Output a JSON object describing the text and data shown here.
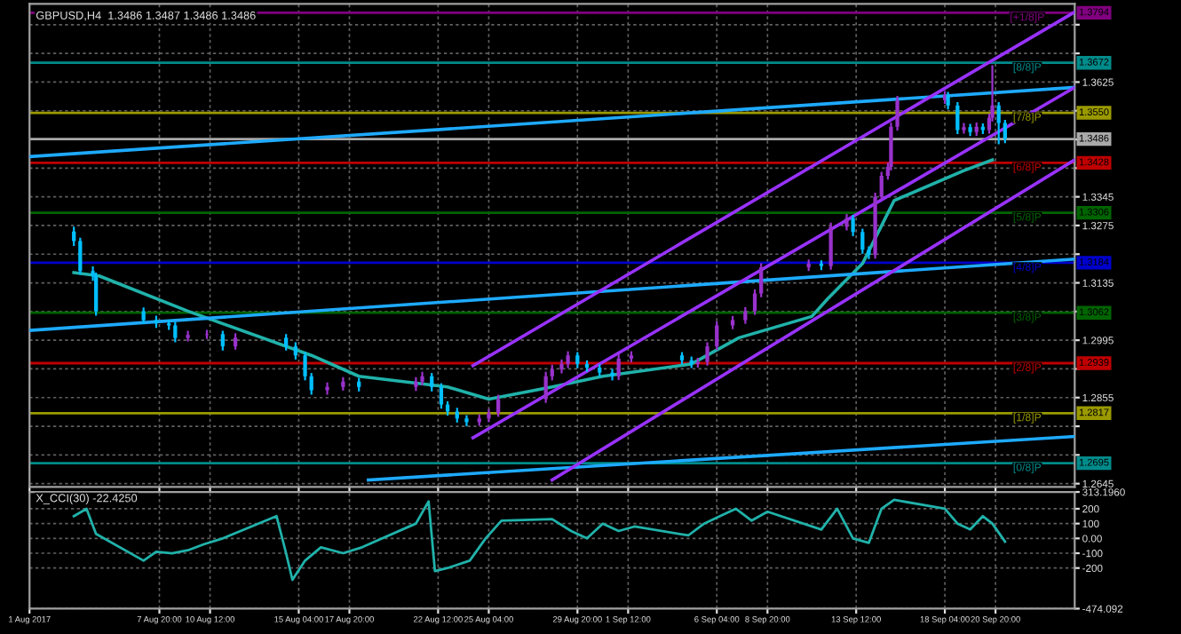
{
  "chart_data": [
    {
      "type": "candlestick",
      "title": "GBPUSD,H4  1.3486 1.3487 1.3486 1.3486",
      "x": [
        "2017-08-03T08:00",
        "2017-08-03T16:00",
        "2017-08-04T08:00",
        "2017-08-04T12:00",
        "2017-08-07T00:00",
        "2017-08-07T16:00",
        "2017-08-08T08:00",
        "2017-08-08T16:00",
        "2017-08-09T08:00",
        "2017-08-10T08:00",
        "2017-08-11T04:00",
        "2017-08-11T20:00",
        "2017-08-14T12:00",
        "2017-08-15T00:00",
        "2017-08-15T12:00",
        "2017-08-15T20:00",
        "2017-08-16T16:00",
        "2017-08-17T12:00",
        "2017-08-18T08:00",
        "2017-08-21T08:00",
        "2017-08-21T16:00",
        "2017-08-22T04:00",
        "2017-08-22T16:00",
        "2017-08-23T00:00",
        "2017-08-23T12:00",
        "2017-08-24T00:00",
        "2017-08-24T16:00",
        "2017-08-25T04:00",
        "2017-08-25T16:00",
        "2017-08-28T04:00",
        "2017-08-28T12:00",
        "2017-08-29T00:00",
        "2017-08-29T08:00",
        "2017-08-29T20:00",
        "2017-08-30T08:00",
        "2017-08-31T00:00",
        "2017-08-31T16:00",
        "2017-09-01T00:00",
        "2017-09-01T16:00",
        "2017-09-04T08:00",
        "2017-09-04T20:00",
        "2017-09-05T04:00",
        "2017-09-05T16:00",
        "2017-09-06T04:00",
        "2017-09-07T00:00",
        "2017-09-07T16:00",
        "2017-09-08T04:00",
        "2017-09-08T12:00",
        "2017-09-11T00:00",
        "2017-09-11T16:00",
        "2017-09-12T04:00",
        "2017-09-13T00:00",
        "2017-09-13T08:00",
        "2017-09-13T20:00",
        "2017-09-14T04:00",
        "2017-09-14T12:00",
        "2017-09-14T20:00",
        "2017-09-15T04:00",
        "2017-09-15T08:00",
        "2017-09-15T16:00",
        "2017-09-18T04:00",
        "2017-09-18T08:00",
        "2017-09-18T20:00",
        "2017-09-19T04:00",
        "2017-09-19T12:00",
        "2017-09-19T20:00",
        "2017-09-20T04:00",
        "2017-09-20T12:00",
        "2017-09-20T16:00",
        "2017-09-21T00:00",
        "2017-09-21T08:00"
      ],
      "ohlc": [
        [
          1.326,
          1.3272,
          1.3225,
          1.3237
        ],
        [
          1.3237,
          1.3245,
          1.3155,
          1.3164
        ],
        [
          1.3164,
          1.3175,
          1.314,
          1.3152
        ],
        [
          1.3152,
          1.316,
          1.3055,
          1.3066
        ],
        [
          1.3066,
          1.3075,
          1.3035,
          1.3044
        ],
        [
          1.3044,
          1.3055,
          1.3025,
          1.3036
        ],
        [
          1.3036,
          1.3045,
          1.302,
          1.3031
        ],
        [
          1.3031,
          1.304,
          1.299,
          1.3001
        ],
        [
          1.3001,
          1.3018,
          1.2992,
          1.3008
        ],
        [
          1.3008,
          1.302,
          1.2998,
          1.301
        ],
        [
          1.301,
          1.3018,
          1.297,
          1.298
        ],
        [
          1.298,
          1.3012,
          1.2972,
          1.3001
        ],
        [
          1.3001,
          1.301,
          1.297,
          1.298
        ],
        [
          1.298,
          1.299,
          1.2948,
          1.2958
        ],
        [
          1.2958,
          1.2966,
          1.2897,
          1.2907
        ],
        [
          1.2907,
          1.2915,
          1.2862,
          1.2873
        ],
        [
          1.2873,
          1.2892,
          1.2862,
          1.2881
        ],
        [
          1.2881,
          1.2905,
          1.2872,
          1.2894
        ],
        [
          1.2894,
          1.2903,
          1.287,
          1.2881
        ],
        [
          1.2881,
          1.2905,
          1.2871,
          1.2894
        ],
        [
          1.2894,
          1.2918,
          1.2885,
          1.2907
        ],
        [
          1.2907,
          1.2915,
          1.287,
          1.2881
        ],
        [
          1.2881,
          1.289,
          1.2828,
          1.2838
        ],
        [
          1.2838,
          1.2846,
          1.2811,
          1.2821
        ],
        [
          1.2821,
          1.283,
          1.2794,
          1.2804
        ],
        [
          1.2804,
          1.2812,
          1.2785,
          1.2795
        ],
        [
          1.2795,
          1.2814,
          1.2786,
          1.2804
        ],
        [
          1.2804,
          1.2827,
          1.2795,
          1.2817
        ],
        [
          1.2817,
          1.2862,
          1.2808,
          1.2851
        ],
        [
          1.2851,
          1.2918,
          1.2842,
          1.2907
        ],
        [
          1.2907,
          1.2935,
          1.2897,
          1.2924
        ],
        [
          1.2924,
          1.2948,
          1.2914,
          1.2937
        ],
        [
          1.2937,
          1.2968,
          1.2927,
          1.2958
        ],
        [
          1.2958,
          1.2966,
          1.2927,
          1.2937
        ],
        [
          1.2937,
          1.2946,
          1.2918,
          1.2928
        ],
        [
          1.2928,
          1.2936,
          1.2906,
          1.2916
        ],
        [
          1.2916,
          1.2925,
          1.2897,
          1.2907
        ],
        [
          1.2907,
          1.2961,
          1.2898,
          1.295
        ],
        [
          1.295,
          1.2968,
          1.2941,
          1.2958
        ],
        [
          1.2958,
          1.2966,
          1.2936,
          1.2946
        ],
        [
          1.2946,
          1.2955,
          1.2927,
          1.2937
        ],
        [
          1.2937,
          1.2952,
          1.2928,
          1.2942
        ],
        [
          1.2942,
          1.299,
          1.2933,
          1.298
        ],
        [
          1.298,
          1.3041,
          1.2971,
          1.3031
        ],
        [
          1.3031,
          1.3054,
          1.3022,
          1.3044
        ],
        [
          1.3044,
          1.3076,
          1.3035,
          1.3066
        ],
        [
          1.3066,
          1.3119,
          1.3057,
          1.3109
        ],
        [
          1.3109,
          1.3183,
          1.31,
          1.3173
        ],
        [
          1.3173,
          1.3192,
          1.3164,
          1.3182
        ],
        [
          1.3182,
          1.319,
          1.3166,
          1.3176
        ],
        [
          1.3176,
          1.3282,
          1.3167,
          1.3272
        ],
        [
          1.3272,
          1.3303,
          1.3263,
          1.3293
        ],
        [
          1.3293,
          1.3301,
          1.3249,
          1.3259
        ],
        [
          1.3259,
          1.3267,
          1.3206,
          1.3216
        ],
        [
          1.3216,
          1.3224,
          1.3193,
          1.3203
        ],
        [
          1.3203,
          1.3355,
          1.3194,
          1.3345
        ],
        [
          1.3345,
          1.3406,
          1.3336,
          1.3396
        ],
        [
          1.3396,
          1.3428,
          1.3387,
          1.3418
        ],
        [
          1.3418,
          1.3526,
          1.3409,
          1.3516
        ],
        [
          1.3516,
          1.3591,
          1.3507,
          1.3581
        ],
        [
          1.3581,
          1.3603,
          1.3572,
          1.3593
        ],
        [
          1.3593,
          1.3601,
          1.3558,
          1.3568
        ],
        [
          1.3568,
          1.3576,
          1.3498,
          1.3508
        ],
        [
          1.3508,
          1.3525,
          1.3499,
          1.3515
        ],
        [
          1.3515,
          1.3523,
          1.3493,
          1.3503
        ],
        [
          1.3503,
          1.3526,
          1.3494,
          1.3516
        ],
        [
          1.3516,
          1.3524,
          1.3498,
          1.3508
        ],
        [
          1.3508,
          1.3548,
          1.3499,
          1.3538
        ],
        [
          1.3538,
          1.3666,
          1.3529,
          1.3568
        ],
        [
          1.3568,
          1.3576,
          1.3473,
          1.3525
        ],
        [
          1.3525,
          1.3533,
          1.3476,
          1.3486
        ]
      ],
      "colors": [
        "#00bfff",
        "#00bfff",
        "#00bfff",
        "#00bfff",
        "#00bfff",
        "#00bfff",
        "#00bfff",
        "#00bfff",
        "#9932cc",
        "#9932cc",
        "#00bfff",
        "#9932cc",
        "#00bfff",
        "#00bfff",
        "#00bfff",
        "#00bfff",
        "#9932cc",
        "#9932cc",
        "#00bfff",
        "#9932cc",
        "#9932cc",
        "#00bfff",
        "#00bfff",
        "#00bfff",
        "#00bfff",
        "#00bfff",
        "#9932cc",
        "#9932cc",
        "#9932cc",
        "#9932cc",
        "#9932cc",
        "#9932cc",
        "#9932cc",
        "#00bfff",
        "#00bfff",
        "#00bfff",
        "#00bfff",
        "#9932cc",
        "#9932cc",
        "#00bfff",
        "#00bfff",
        "#9932cc",
        "#9932cc",
        "#9932cc",
        "#9932cc",
        "#9932cc",
        "#9932cc",
        "#9932cc",
        "#9932cc",
        "#00bfff",
        "#9932cc",
        "#9932cc",
        "#00bfff",
        "#00bfff",
        "#00bfff",
        "#9932cc",
        "#9932cc",
        "#9932cc",
        "#9932cc",
        "#9932cc",
        "#9932cc",
        "#00bfff",
        "#00bfff",
        "#9932cc",
        "#00bfff",
        "#9932cc",
        "#00bfff",
        "#9932cc",
        "#9932cc",
        "#00bfff",
        "#00bfff"
      ],
      "series": [
        {
          "type": "line",
          "color": "#20b2aa",
          "x": [
            "2017-08-03T08:00",
            "2017-08-04T16:00",
            "2017-08-09T08:00",
            "2017-08-15T20:00",
            "2017-08-18T08:00",
            "2017-08-23T00:00",
            "2017-08-25T04:00",
            "2017-08-28T12:00",
            "2017-08-31T04:00",
            "2017-09-04T20:00",
            "2017-09-07T08:00",
            "2017-09-11T04:00",
            "2017-09-12T00:00",
            "2017-09-13T20:00",
            "2017-09-15T12:00",
            "2017-09-19T04:00",
            "2017-09-20T16:00"
          ],
          "values": [
            1.316,
            1.3152,
            1.3066,
            1.2958,
            1.2907,
            1.2881,
            1.2851,
            1.2881,
            1.2907,
            1.2937,
            1.3001,
            1.3053,
            1.3096,
            1.3182,
            1.3336,
            1.3409,
            1.3435
          ]
        },
        {
          "type": "line",
          "color": "#1eaaff",
          "x": [
            "2017-08-01T00:00",
            "2017-09-25T00:00"
          ],
          "values": [
            1.3443,
            1.3612
          ]
        },
        {
          "type": "line",
          "color": "#1eaaff",
          "x": [
            "2017-08-01T00:00",
            "2017-09-25T00:00"
          ],
          "values": [
            1.3019,
            1.3193
          ]
        },
        {
          "type": "line",
          "color": "#1eaaff",
          "x": [
            "2017-08-18T20:00",
            "2017-09-25T00:00"
          ],
          "values": [
            1.2654,
            1.276
          ]
        },
        {
          "type": "line",
          "color": "#9932ff",
          "x": [
            "2017-08-28T12:00",
            "2017-09-25T00:00"
          ],
          "values": [
            1.2654,
            1.3435
          ]
        },
        {
          "type": "line",
          "color": "#9932ff",
          "x": [
            "2017-08-24T08:00",
            "2017-09-25T00:00"
          ],
          "values": [
            1.2757,
            1.3612
          ]
        },
        {
          "type": "line",
          "color": "#9932ff",
          "x": [
            "2017-08-24T08:00",
            "2017-09-25T00:00"
          ],
          "values": [
            1.2933,
            1.3796
          ]
        }
      ],
      "ref_lines": [
        {
          "axis": "y",
          "value": 1.3794,
          "label": "1.3794",
          "color": "#800080"
        },
        {
          "axis": "y",
          "value": 1.3672,
          "label": "1.3672",
          "color": "#008b8b"
        },
        {
          "axis": "y",
          "value": 1.355,
          "label": "1.3550",
          "color": "#9a9a00"
        },
        {
          "axis": "y",
          "value": 1.3486,
          "label": "1.3486",
          "color": "#a9a9a9"
        },
        {
          "axis": "y",
          "value": 1.3428,
          "label": "1.3428",
          "color": "#c00000"
        },
        {
          "axis": "y",
          "value": 1.3306,
          "label": "1.3306",
          "color": "#006400"
        },
        {
          "axis": "y",
          "value": 1.3184,
          "label": "1.3184",
          "color": "#0000cd"
        },
        {
          "axis": "y",
          "value": 1.3062,
          "label": "1.3062",
          "color": "#006400"
        },
        {
          "axis": "y",
          "value": 1.2939,
          "label": "1.2939",
          "color": "#c00000"
        },
        {
          "axis": "y",
          "value": 1.2817,
          "label": "1.2817",
          "color": "#9a9a00"
        },
        {
          "axis": "y",
          "value": 1.2695,
          "label": "1.2695",
          "color": "#008b8b"
        }
      ],
      "annotations": [
        {
          "text": "[+1/8]P",
          "x": "2017-09-22T12:00",
          "y": 1.3794
        },
        {
          "text": "[8/8]P",
          "x": "2017-09-22T12:00",
          "y": 1.3672
        },
        {
          "text": "[7/8]P",
          "x": "2017-09-22T12:00",
          "y": 1.355
        },
        {
          "text": "[6/8]P",
          "x": "2017-09-22T12:00",
          "y": 1.3428
        },
        {
          "text": "[5/8]P",
          "x": "2017-09-22T12:00",
          "y": 1.3306
        },
        {
          "text": "[4/8]P",
          "x": "2017-09-22T12:00",
          "y": 1.3184
        },
        {
          "text": "[3/8]P",
          "x": "2017-09-22T12:00",
          "y": 1.3062
        },
        {
          "text": "[2/8]P",
          "x": "2017-09-22T12:00",
          "y": 1.2939
        },
        {
          "text": "[1/8]P",
          "x": "2017-09-22T12:00",
          "y": 1.2817
        },
        {
          "text": "[0/8]P",
          "x": "2017-09-22T12:00",
          "y": 1.2695
        }
      ],
      "xlim": [
        "2017-08-01T00:00",
        "2017-09-25T00:00"
      ],
      "ylim": [
        1.2637,
        1.3816
      ],
      "xticks": [
        {
          "value": "2017-08-01T00:00",
          "label": null
        },
        {
          "value": "2017-08-07T20:00",
          "label": null
        },
        {
          "value": "2017-08-10T12:00",
          "label": null
        },
        {
          "value": "2017-08-15T04:00",
          "label": null
        },
        {
          "value": "2017-08-17T20:00",
          "label": null
        },
        {
          "value": "2017-08-22T12:00",
          "label": null
        },
        {
          "value": "2017-08-25T04:00",
          "label": null
        },
        {
          "value": "2017-08-29T20:00",
          "label": null
        },
        {
          "value": "2017-09-01T12:00",
          "label": null
        },
        {
          "value": "2017-09-06T04:00",
          "label": null
        },
        {
          "value": "2017-09-08T20:00",
          "label": null
        },
        {
          "value": "2017-09-13T12:00",
          "label": null
        },
        {
          "value": "2017-09-18T04:00",
          "label": null
        },
        {
          "value": "2017-09-20T20:00",
          "label": null
        }
      ],
      "yticks": [
        {
          "value": 1.3765,
          "label": null
        },
        {
          "value": 1.3695,
          "label": null
        },
        1.3625,
        {
          "value": 1.3555,
          "label": null
        },
        {
          "value": 1.3485,
          "label": null
        },
        {
          "value": 1.3415,
          "label": null
        },
        1.3345,
        1.3275,
        {
          "value": 1.3205,
          "label": null
        },
        1.3135,
        {
          "value": 1.3065,
          "label": null
        },
        1.2995,
        {
          "value": 1.2925,
          "label": null
        },
        1.2855,
        {
          "value": 1.2785,
          "label": null
        },
        {
          "value": 1.2715,
          "label": null
        },
        1.2645
      ],
      "grid": true,
      "tick_labels": "y"
    },
    {
      "type": "line",
      "title": "X_CCI(30) -22.4250",
      "x": [
        "2017-08-03T08:00",
        "2017-08-04T00:00",
        "2017-08-04T12:00",
        "2017-08-07T00:00",
        "2017-08-07T16:00",
        "2017-08-08T12:00",
        "2017-08-09T08:00",
        "2017-08-10T04:00",
        "2017-08-11T04:00",
        "2017-08-14T00:00",
        "2017-08-14T12:00",
        "2017-08-14T20:00",
        "2017-08-15T12:00",
        "2017-08-16T08:00",
        "2017-08-17T12:00",
        "2017-08-18T12:00",
        "2017-08-21T08:00",
        "2017-08-22T00:00",
        "2017-08-22T08:00",
        "2017-08-23T00:00",
        "2017-08-24T04:00",
        "2017-08-25T00:00",
        "2017-08-25T20:00",
        "2017-08-28T12:00",
        "2017-08-29T12:00",
        "2017-08-30T08:00",
        "2017-08-31T04:00",
        "2017-09-01T00:00",
        "2017-09-01T20:00",
        "2017-09-04T16:00",
        "2017-09-05T12:00",
        "2017-09-06T08:00",
        "2017-09-07T04:00",
        "2017-09-08T00:00",
        "2017-09-08T20:00",
        "2017-09-11T16:00",
        "2017-09-12T12:00",
        "2017-09-13T08:00",
        "2017-09-14T04:00",
        "2017-09-14T20:00",
        "2017-09-15T12:00",
        "2017-09-18T04:00",
        "2017-09-18T20:00",
        "2017-09-19T12:00",
        "2017-09-20T04:00",
        "2017-09-20T16:00",
        "2017-09-21T08:00"
      ],
      "series": [
        {
          "color": "#20b2aa",
          "values": [
            150,
            200,
            30,
            -150,
            -90,
            -100,
            -80,
            -40,
            0,
            150,
            -100,
            -280,
            -150,
            -60,
            -100,
            -60,
            100,
            250,
            -220,
            -200,
            -150,
            0,
            120,
            130,
            50,
            0,
            100,
            50,
            80,
            20,
            100,
            150,
            200,
            120,
            180,
            60,
            200,
            0,
            -30,
            200,
            260,
            200,
            100,
            60,
            150,
            100,
            -22
          ]
        }
      ],
      "xlim": [
        "2017-08-01T00:00",
        "2017-09-25T00:00"
      ],
      "ylim": [
        -474.092,
        313.196
      ],
      "xticks": [
        {
          "value": "2017-08-01T00:00",
          "label": "1 Aug 2017"
        },
        {
          "value": "2017-08-07T20:00",
          "label": "7 Aug 20:00"
        },
        {
          "value": "2017-08-10T12:00",
          "label": "10 Aug 12:00"
        },
        {
          "value": "2017-08-15T04:00",
          "label": "15 Aug 04:00"
        },
        {
          "value": "2017-08-17T20:00",
          "label": "17 Aug 20:00"
        },
        {
          "value": "2017-08-22T12:00",
          "label": "22 Aug 12:00"
        },
        {
          "value": "2017-08-25T04:00",
          "label": "25 Aug 04:00"
        },
        {
          "value": "2017-08-29T20:00",
          "label": "29 Aug 20:00"
        },
        {
          "value": "2017-09-01T12:00",
          "label": "1 Sep 12:00"
        },
        {
          "value": "2017-09-06T04:00",
          "label": "6 Sep 04:00"
        },
        {
          "value": "2017-09-08T20:00",
          "label": "8 Sep 20:00"
        },
        {
          "value": "2017-09-13T12:00",
          "label": "13 Sep 12:00"
        },
        {
          "value": "2017-09-18T04:00",
          "label": "18 Sep 04:00"
        },
        {
          "value": "2017-09-20T20:00",
          "label": "20 Sep 20:00"
        }
      ],
      "yticks": [
        {
          "value": 313.196,
          "label": "313.1960"
        },
        200,
        100,
        {
          "value": 0,
          "label": "0.00"
        },
        -100,
        -200,
        {
          "value": -474.092,
          "label": "-474.092"
        }
      ],
      "grid": true
    }
  ]
}
